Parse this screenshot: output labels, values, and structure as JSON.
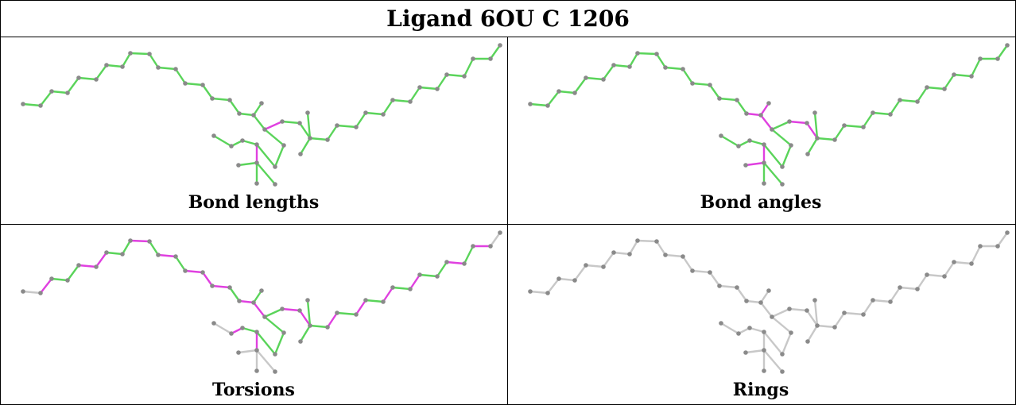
{
  "title": "Ligand 6OU C 1206",
  "panels": [
    {
      "caption": "Bond lengths",
      "scheme": "bond_lengths"
    },
    {
      "caption": "Bond angles",
      "scheme": "bond_angles"
    },
    {
      "caption": "Torsions",
      "scheme": "torsions"
    },
    {
      "caption": "Rings",
      "scheme": "rings"
    }
  ],
  "colors": {
    "ok": "#5ad45a",
    "outlier": "#e040e0",
    "neutral": "#c8c8c8",
    "atom": "#8a8a8a",
    "border": "#000000"
  }
}
